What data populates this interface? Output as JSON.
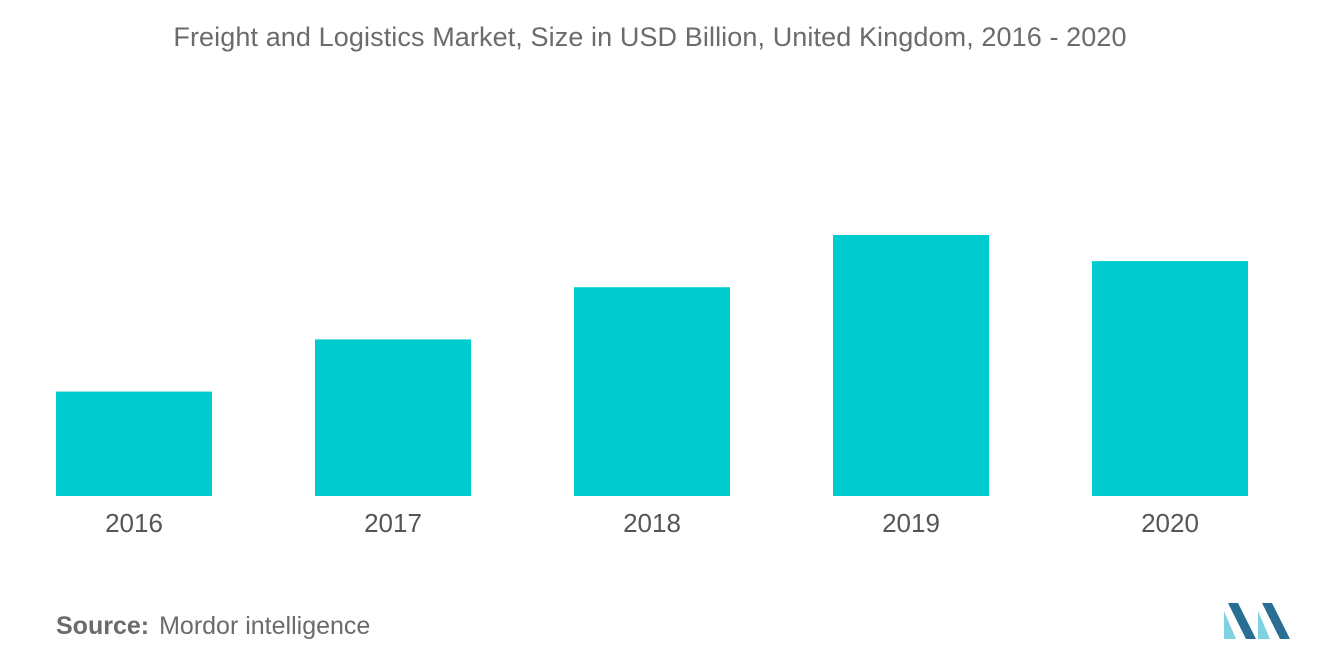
{
  "chart_data": {
    "type": "bar",
    "title": "Freight and Logistics Market, Size in USD Billion, United Kingdom, 2016 - 2020",
    "xlabel": "",
    "ylabel": "",
    "categories": [
      "2016",
      "2017",
      "2018",
      "2019",
      "2020"
    ],
    "values": [
      2,
      3,
      4,
      5,
      4.5
    ],
    "ylim": [
      0,
      5
    ],
    "y_axis_shown": false,
    "grid": false,
    "legend": "none",
    "bar_color": "#00ccd0"
  },
  "source": {
    "prefix": "Source:",
    "text": "Mordor intelligence"
  },
  "logo": {
    "icon": "mordor-intelligence-logo-icon",
    "color_light": "#7fd3e0",
    "color_dark": "#2a6f93"
  }
}
